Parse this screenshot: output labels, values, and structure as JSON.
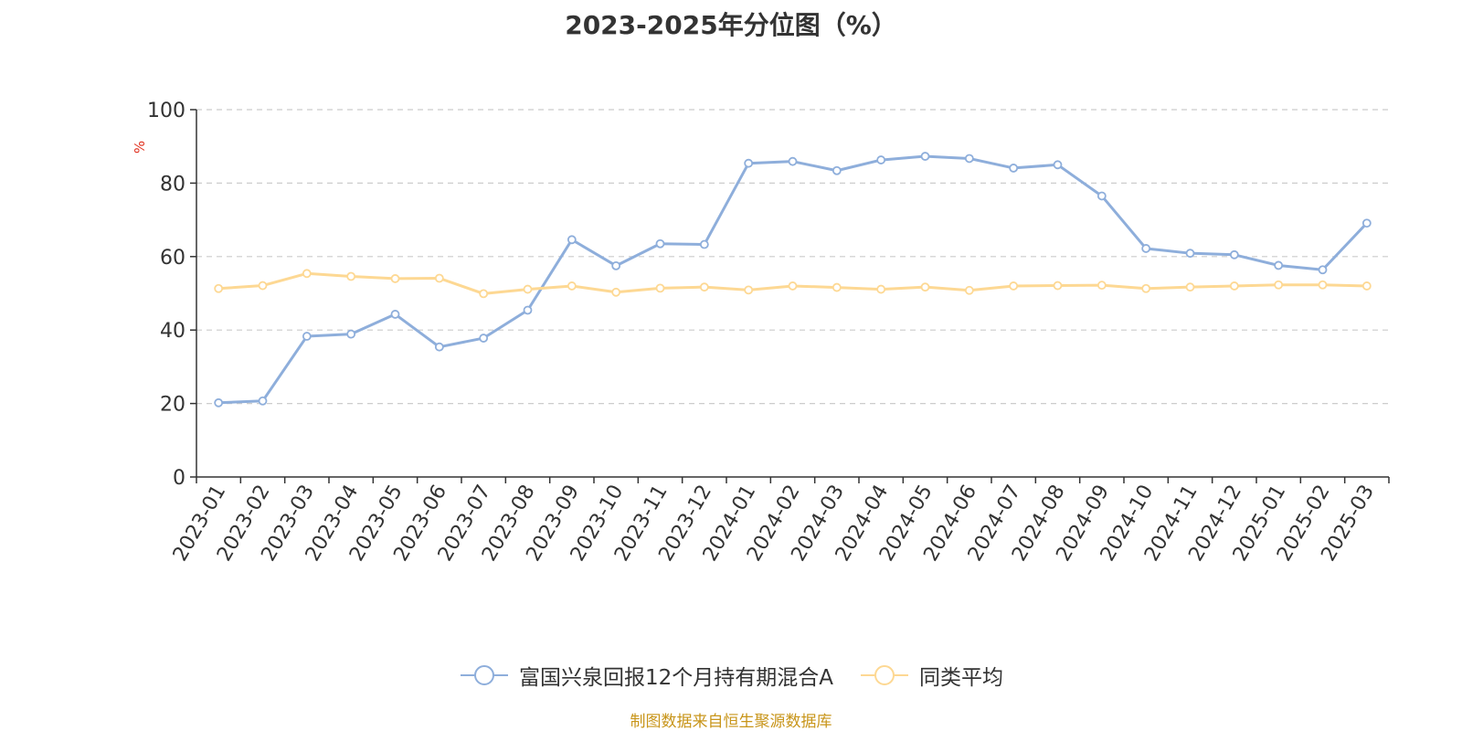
{
  "chart_data": {
    "type": "line",
    "title": "2023-2025年分位图（%）",
    "ylabel": "%",
    "xlabel": "",
    "ylim": [
      0,
      100
    ],
    "yticks": [
      0,
      20,
      40,
      60,
      80,
      100
    ],
    "grid": true,
    "legend_position": "bottom",
    "categories": [
      "2023-01",
      "2023-02",
      "2023-03",
      "2023-04",
      "2023-05",
      "2023-06",
      "2023-07",
      "2023-08",
      "2023-09",
      "2023-10",
      "2023-11",
      "2023-12",
      "2024-01",
      "2024-02",
      "2024-03",
      "2024-04",
      "2024-05",
      "2024-06",
      "2024-07",
      "2024-08",
      "2024-09",
      "2024-10",
      "2024-11",
      "2024-12",
      "2025-01",
      "2025-02",
      "2025-03"
    ],
    "series": [
      {
        "name": "富国兴泉回报12个月持有期混合A",
        "color": "#8eaedb",
        "values": [
          20.2,
          20.7,
          38.3,
          38.9,
          44.3,
          35.4,
          37.8,
          45.4,
          64.6,
          57.5,
          63.5,
          63.3,
          85.4,
          85.9,
          83.4,
          86.3,
          87.3,
          86.7,
          84.1,
          85.0,
          76.5,
          62.2,
          60.9,
          60.5,
          57.6,
          56.4,
          69.1
        ]
      },
      {
        "name": "同类平均",
        "color": "#fdd893",
        "values": [
          51.3,
          52.1,
          55.4,
          54.6,
          54.0,
          54.1,
          49.9,
          51.1,
          52.0,
          50.3,
          51.4,
          51.7,
          50.9,
          52.0,
          51.6,
          51.1,
          51.7,
          50.8,
          52.0,
          52.1,
          52.2,
          51.3,
          51.7,
          52.0,
          52.3,
          52.3,
          52.0
        ]
      }
    ]
  },
  "source": "制图数据来自恒生聚源数据库"
}
